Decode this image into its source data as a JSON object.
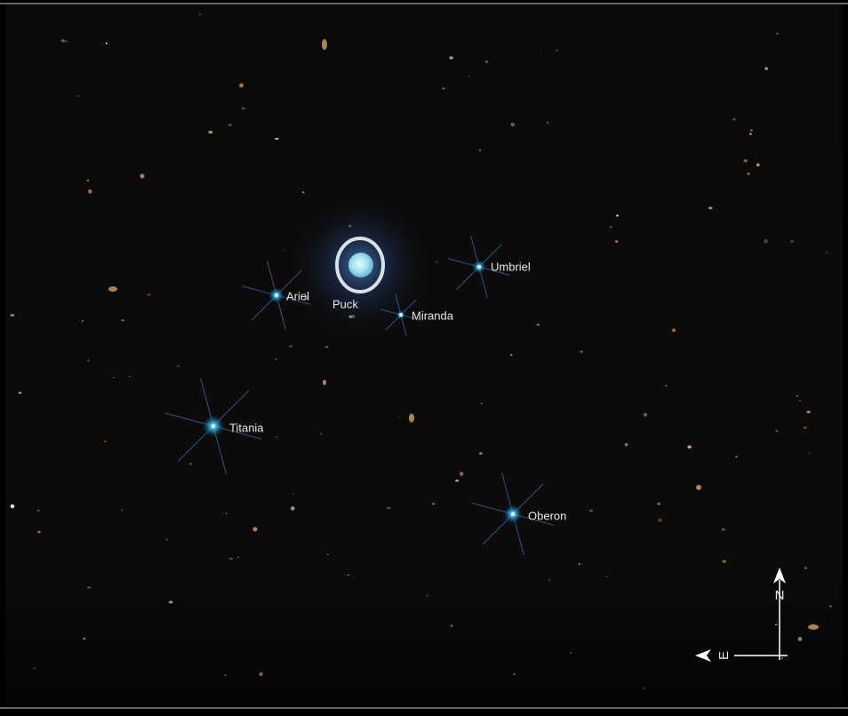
{
  "moons": [
    {
      "label": "Ariel"
    },
    {
      "label": "Puck"
    },
    {
      "label": "Miranda"
    },
    {
      "label": "Umbriel"
    },
    {
      "label": "Titania"
    },
    {
      "label": "Oberon"
    }
  ],
  "compass": {
    "north": "N",
    "east": "E"
  }
}
